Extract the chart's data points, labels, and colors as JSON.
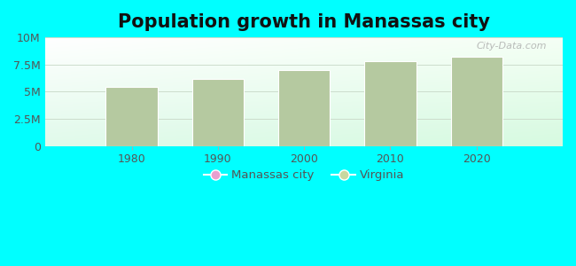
{
  "title": "Population growth in Manassas city",
  "title_fontsize": 15,
  "background_color": "#00FFFF",
  "bar_color": "#b5c9a0",
  "bar_edge_color": "#ffffff",
  "years": [
    1980,
    1990,
    2000,
    2010,
    2020
  ],
  "values": [
    5400000,
    6200000,
    7000000,
    7800000,
    8200000
  ],
  "ylim": [
    0,
    10000000
  ],
  "yticks": [
    0,
    2500000,
    5000000,
    7500000,
    10000000
  ],
  "grid_color": "#ccddcc",
  "tick_color": "#555555",
  "legend_items": [
    {
      "label": "Manassas city",
      "color": "#e8a0d0"
    },
    {
      "label": "Virginia",
      "color": "#c8d8a0"
    }
  ],
  "watermark": "City-Data.com",
  "watermark_color": "#aaaaaa",
  "plot_xlim": [
    1970,
    2030
  ]
}
